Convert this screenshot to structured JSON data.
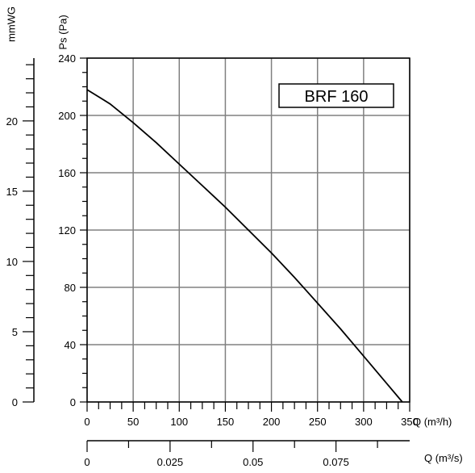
{
  "chart_data": {
    "type": "line",
    "title": "BRF 160",
    "x": [
      0,
      25,
      50,
      75,
      100,
      125,
      150,
      175,
      200,
      225,
      250,
      275,
      300,
      325,
      342
    ],
    "series": [
      {
        "values": [
          218,
          208,
          195,
          181,
          166,
          151,
          136,
          120,
          104,
          87,
          69,
          51,
          32,
          13,
          0
        ]
      }
    ],
    "x_axis": {
      "label": "Q (m³/h)",
      "range": [
        0,
        350
      ],
      "ticks": [
        0,
        50,
        100,
        150,
        200,
        250,
        300,
        350
      ]
    },
    "y_axis": {
      "label": "Ps (Pa)",
      "range": [
        0,
        240
      ],
      "ticks": [
        0,
        40,
        80,
        120,
        160,
        200,
        240
      ]
    },
    "y2_axis": {
      "label": "mmWG",
      "range": [
        0,
        24.47
      ],
      "ticks": [
        0,
        5,
        10,
        15,
        20
      ]
    },
    "x2_axis": {
      "label": "Q (m³/s)",
      "range": [
        0,
        0.0972
      ],
      "ticks": [
        0,
        0.025,
        0.05,
        0.075
      ],
      "tick_labels": [
        "0",
        "0.025",
        "0.05",
        "0.075"
      ]
    },
    "grid": true,
    "legend": "none",
    "line_color": "#000000",
    "grid_color": "#808080"
  }
}
